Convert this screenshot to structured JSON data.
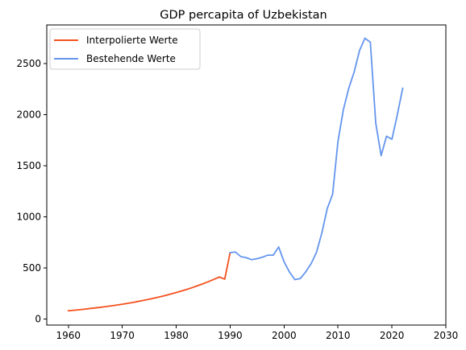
{
  "chart_data": {
    "type": "line",
    "title": "GDP percapita of Uzbekistan",
    "xlabel": "",
    "ylabel": "",
    "xlim": [
      1956,
      2030
    ],
    "ylim": [
      -60,
      2880
    ],
    "x_ticks": [
      1960,
      1970,
      1980,
      1990,
      2000,
      2010,
      2020,
      2030
    ],
    "y_ticks": [
      0,
      500,
      1000,
      1500,
      2000,
      2500
    ],
    "grid": false,
    "legend_position": "top-left",
    "series": [
      {
        "name": "Interpolierte Werte",
        "color": "#f4511e",
        "x": [
          1960,
          1961,
          1962,
          1963,
          1964,
          1965,
          1966,
          1967,
          1968,
          1969,
          1970,
          1971,
          1972,
          1973,
          1974,
          1975,
          1976,
          1977,
          1978,
          1979,
          1980,
          1981,
          1982,
          1983,
          1984,
          1985,
          1986,
          1987,
          1988,
          1989,
          1990
        ],
        "y": [
          80,
          85,
          90,
          96,
          102,
          108,
          114,
          121,
          128,
          136,
          144,
          153,
          162,
          172,
          182,
          193,
          205,
          217,
          230,
          244,
          258,
          274,
          290,
          307,
          326,
          345,
          366,
          388,
          411,
          390,
          650
        ]
      },
      {
        "name": "Bestehende Werte",
        "color": "#6495ed",
        "x": [
          1990,
          1991,
          1992,
          1993,
          1994,
          1995,
          1996,
          1997,
          1998,
          1999,
          2000,
          2001,
          2002,
          2003,
          2004,
          2005,
          2006,
          2007,
          2008,
          2009,
          2010,
          2011,
          2012,
          2013,
          2014,
          2015,
          2016,
          2017,
          2018,
          2019,
          2020,
          2021,
          2022
        ],
        "y": [
          650,
          655,
          610,
          600,
          580,
          590,
          605,
          625,
          625,
          705,
          560,
          460,
          385,
          395,
          460,
          540,
          650,
          840,
          1080,
          1220,
          1740,
          2050,
          2260,
          2420,
          2630,
          2750,
          2710,
          1920,
          1600,
          1790,
          1760,
          2000,
          2260
        ]
      }
    ]
  }
}
